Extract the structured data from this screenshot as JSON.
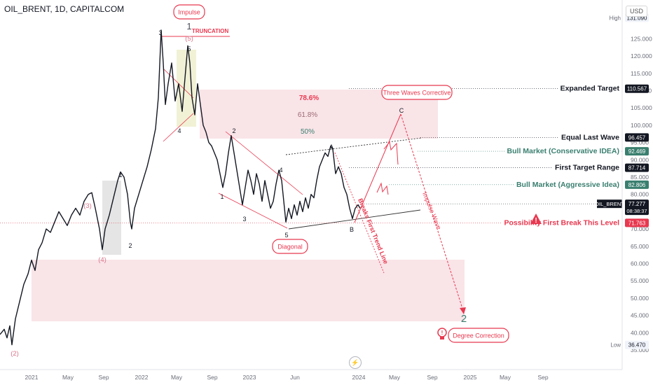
{
  "header": {
    "symbol": "OIL_BRENT, 1D, CAPITALCOM",
    "currency": "USD"
  },
  "colors": {
    "red": "#e8384f",
    "green": "#3a7f6f",
    "pink_zone": "rgba(242,196,204,0.45)",
    "grey_zone": "rgba(180,180,180,0.35)",
    "yellow_zone": "rgba(236,236,200,0.75)",
    "price": "#131722"
  },
  "chart_data": {
    "type": "line",
    "title": "OIL_BRENT, 1D, CAPITALCOM",
    "xlabel": "",
    "ylabel": "",
    "x_ticks": [
      "2021",
      "May",
      "Sep",
      "2022",
      "May",
      "Sep",
      "2023",
      "Jun",
      "2024",
      "May",
      "Sep",
      "2025",
      "May",
      "Sep"
    ],
    "y_ticks": [
      35,
      40,
      45,
      50,
      55,
      60,
      65,
      70,
      75,
      80,
      85,
      90,
      95,
      100,
      105,
      110,
      115,
      120,
      125
    ],
    "ylim": [
      33,
      133
    ],
    "series": [
      {
        "values": [
          [
            0,
            39.5
          ],
          [
            6,
            41
          ],
          [
            10,
            38.5
          ],
          [
            14,
            42
          ],
          [
            17,
            36.5
          ],
          [
            22,
            44
          ],
          [
            28,
            49
          ],
          [
            34,
            54
          ],
          [
            40,
            57
          ],
          [
            45,
            61
          ],
          [
            50,
            58
          ],
          [
            55,
            64
          ],
          [
            60,
            66
          ],
          [
            66,
            70
          ],
          [
            72,
            69
          ],
          [
            78,
            72
          ],
          [
            84,
            75
          ],
          [
            90,
            73
          ],
          [
            96,
            71
          ],
          [
            102,
            74
          ],
          [
            108,
            76
          ],
          [
            114,
            74
          ],
          [
            120,
            78
          ],
          [
            126,
            80
          ],
          [
            131,
            80.5
          ],
          [
            136,
            76
          ],
          [
            142,
            70
          ],
          [
            146,
            64
          ],
          [
            150,
            70
          ],
          [
            156,
            74
          ],
          [
            162,
            79
          ],
          [
            168,
            84
          ],
          [
            172,
            86.5
          ],
          [
            177,
            85
          ],
          [
            182,
            80
          ],
          [
            186,
            72
          ],
          [
            188,
            70
          ],
          [
            192,
            76
          ],
          [
            198,
            80
          ],
          [
            204,
            84
          ],
          [
            210,
            88
          ],
          [
            216,
            93
          ],
          [
            222,
            99
          ],
          [
            226,
            108
          ],
          [
            230,
            127.5
          ],
          [
            233,
            118
          ],
          [
            236,
            106
          ],
          [
            240,
            112
          ],
          [
            245,
            118
          ],
          [
            250,
            107
          ],
          [
            255,
            112
          ],
          [
            260,
            104
          ],
          [
            265,
            116
          ],
          [
            268,
            123
          ],
          [
            271,
            118
          ],
          [
            274,
            108
          ],
          [
            278,
            103
          ],
          [
            282,
            112
          ],
          [
            286,
            106
          ],
          [
            290,
            100
          ],
          [
            294,
            98
          ],
          [
            298,
            95
          ],
          [
            302,
            94
          ],
          [
            306,
            92
          ],
          [
            310,
            90
          ],
          [
            314,
            86
          ],
          [
            318,
            82
          ],
          [
            322,
            86
          ],
          [
            326,
            92
          ],
          [
            330,
            97
          ],
          [
            334,
            92
          ],
          [
            338,
            87
          ],
          [
            342,
            82
          ],
          [
            346,
            77
          ],
          [
            350,
            82
          ],
          [
            354,
            87
          ],
          [
            358,
            84
          ],
          [
            362,
            80
          ],
          [
            366,
            86
          ],
          [
            370,
            83
          ],
          [
            374,
            78
          ],
          [
            378,
            84
          ],
          [
            382,
            80
          ],
          [
            386,
            76
          ],
          [
            390,
            78
          ],
          [
            394,
            83
          ],
          [
            398,
            87
          ],
          [
            402,
            84
          ],
          [
            405,
            78
          ],
          [
            408,
            72
          ],
          [
            412,
            76
          ],
          [
            416,
            73
          ],
          [
            420,
            77
          ],
          [
            424,
            74
          ],
          [
            428,
            78
          ],
          [
            432,
            75
          ],
          [
            436,
            79
          ],
          [
            440,
            76
          ],
          [
            444,
            80
          ],
          [
            448,
            79
          ],
          [
            452,
            84
          ],
          [
            456,
            88
          ],
          [
            460,
            90
          ],
          [
            464,
            92
          ],
          [
            468,
            91
          ],
          [
            472,
            94
          ],
          [
            475,
            93
          ],
          [
            479,
            86
          ],
          [
            483,
            88
          ],
          [
            487,
            86
          ],
          [
            491,
            82
          ],
          [
            495,
            80
          ],
          [
            499,
            76
          ],
          [
            503,
            73
          ],
          [
            507,
            76
          ],
          [
            511,
            77
          ],
          [
            514,
            76
          ]
        ]
      }
    ],
    "price_labels": [
      {
        "label": "High",
        "value": "131.090"
      },
      {
        "label": "Expanded Target",
        "value": "110.567"
      },
      {
        "label": "Equal Last Wave",
        "value": "96.457"
      },
      {
        "label": "Bull Market (Conservative IDEA)",
        "value": "92.469"
      },
      {
        "label": "First Target Range",
        "value": "87.714"
      },
      {
        "label": "Bull Market (Aggressive Idea)",
        "value": "82.806"
      },
      {
        "label": "OIL_BRENT",
        "value": "77.277",
        "countdown": "08:38:37"
      },
      {
        "label": "Possibility First Break This Level",
        "value": "71.763"
      },
      {
        "label": "Low",
        "value": "36.470"
      }
    ]
  },
  "annotations": {
    "impulse_bubble": "Impulse",
    "truncation": "TRUNCATION",
    "three_waves_bubble": "Three Waves Corrective",
    "diagonal_bubble": "Diagonal",
    "degree_correction_bubble": "Degree Correction",
    "fib_786": "78.6%",
    "fib_618": "61.8%",
    "fib_50": "50%",
    "impulse_wave_text": "Impulse Wave",
    "breaks_trendline_text": "Breaks First Trend Line",
    "warning_mark": "!",
    "bulb_mark": "!"
  },
  "wave_labels": [
    {
      "text": "(2)",
      "kind": "pink"
    },
    {
      "text": "(3)",
      "kind": "pink"
    },
    {
      "text": "(4)",
      "kind": "pink"
    },
    {
      "text": "(5)",
      "kind": "pink"
    },
    {
      "text": "1",
      "kind": "big"
    },
    {
      "text": "2",
      "kind": "big"
    },
    {
      "text": "1",
      "kind": "black"
    },
    {
      "text": "2",
      "kind": "black"
    },
    {
      "text": "3",
      "kind": "black"
    },
    {
      "text": "4",
      "kind": "black"
    },
    {
      "text": "5",
      "kind": "black"
    },
    {
      "text": "1",
      "kind": "black"
    },
    {
      "text": "2",
      "kind": "black"
    },
    {
      "text": "3",
      "kind": "black"
    },
    {
      "text": "4",
      "kind": "black"
    },
    {
      "text": "5",
      "kind": "black"
    },
    {
      "text": "A",
      "kind": "black"
    },
    {
      "text": "B",
      "kind": "black"
    },
    {
      "text": "C",
      "kind": "black"
    }
  ]
}
